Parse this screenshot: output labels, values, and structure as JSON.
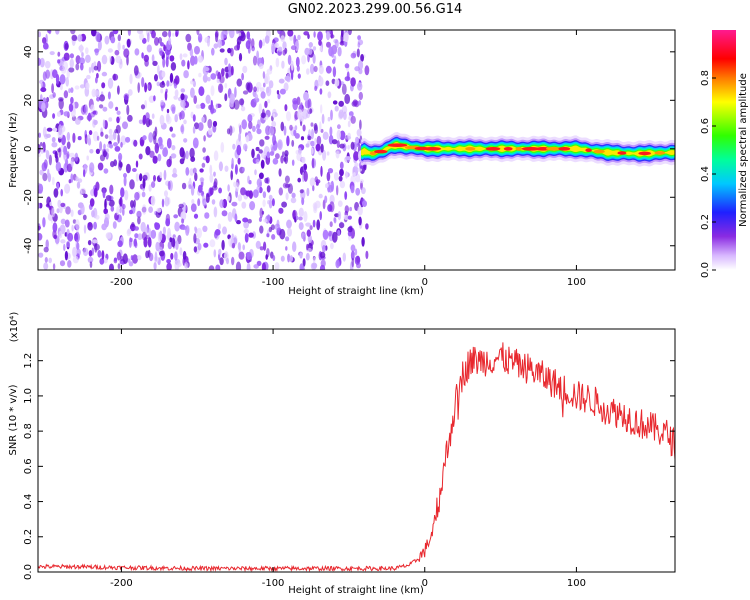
{
  "title": "GN02.2023.299.00.56.G14",
  "colors": {
    "snr_line": "#e8282e",
    "speckle": "#7a1fe0",
    "background": "#ffffff"
  },
  "chart_data": [
    {
      "type": "heatmap",
      "xlabel": "Height of straight line (km)",
      "ylabel": "Frequency (Hz)",
      "xlim": [
        -255,
        165
      ],
      "ylim": [
        -50,
        49
      ],
      "xticks": [
        -200,
        -100,
        0,
        100
      ],
      "xtick_labels": [
        "-200",
        "-100",
        "0",
        "100"
      ],
      "yticks": [
        -40,
        -20,
        0,
        20,
        40
      ],
      "ytick_labels": [
        "-40",
        "-20",
        "0",
        "20",
        "40"
      ],
      "noise_region_x": [
        -255,
        -38
      ],
      "signal_region_x": [
        -42,
        165
      ],
      "signal_ridge": [
        [
          -40,
          -1
        ],
        [
          -35,
          -2
        ],
        [
          -28,
          -1
        ],
        [
          -22,
          1
        ],
        [
          -18,
          1.5
        ],
        [
          -12,
          0.8
        ],
        [
          0,
          0
        ],
        [
          20,
          0
        ],
        [
          40,
          0
        ],
        [
          60,
          0
        ],
        [
          80,
          0
        ],
        [
          100,
          0
        ],
        [
          120,
          -1.5
        ],
        [
          140,
          -2
        ],
        [
          165,
          -1.5
        ]
      ],
      "colorbar": {
        "label": "Normalized spectral amplitude",
        "range": [
          0,
          1
        ],
        "ticks": [
          0.0,
          0.2,
          0.4,
          0.6,
          0.8
        ],
        "tick_labels": [
          "0.0",
          "0.2",
          "0.4",
          "0.6",
          "0.8"
        ],
        "colormap": "rainbow: white-violet-blue-cyan-green-yellow-red-magenta"
      }
    },
    {
      "type": "line",
      "xlabel": "Height of straight line (km)",
      "ylabel": "SNR (10 * v/v)",
      "multiplier": "(x10⁴)",
      "xlim": [
        -255,
        165
      ],
      "ylim": [
        0,
        1.38
      ],
      "xticks": [
        -200,
        -100,
        0,
        100
      ],
      "xtick_labels": [
        "-200",
        "-100",
        "0",
        "100"
      ],
      "yticks": [
        0.0,
        0.2,
        0.4,
        0.6,
        0.8,
        1.0,
        1.2
      ],
      "ytick_labels": [
        "0.0",
        "0.2",
        "0.4",
        "0.6",
        "0.8",
        "1.0",
        "1.2"
      ],
      "series": [
        {
          "x": [
            -255,
            -230,
            -200,
            -150,
            -100,
            -50,
            -20,
            -10,
            -5,
            0,
            5,
            10,
            15,
            20,
            25,
            30,
            40,
            50,
            60,
            70,
            80,
            90,
            100,
            110,
            120,
            130,
            140,
            150,
            160,
            165
          ],
          "y": [
            0.03,
            0.03,
            0.025,
            0.02,
            0.02,
            0.02,
            0.02,
            0.04,
            0.07,
            0.12,
            0.22,
            0.45,
            0.7,
            0.95,
            1.12,
            1.2,
            1.2,
            1.22,
            1.18,
            1.15,
            1.1,
            1.05,
            1.0,
            0.98,
            0.92,
            0.9,
            0.85,
            0.82,
            0.78,
            0.72
          ]
        }
      ]
    }
  ]
}
